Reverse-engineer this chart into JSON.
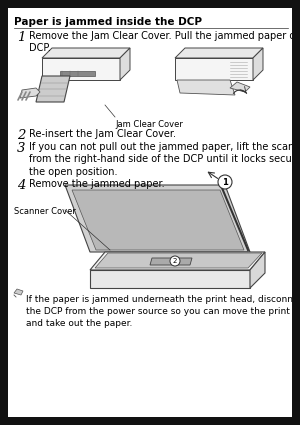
{
  "bg_color": "#ffffff",
  "page_bg": "#f0f0f0",
  "border_color": "#000000",
  "title": "Paper is jammed inside the DCP",
  "title_fontsize": 7.5,
  "step1_text": "Remove the Jam Clear Cover. Pull the jammed paper out of the\nDCP.",
  "step2_text": "Re-insert the Jam Clear Cover.",
  "step3_text": "If you can not pull out the jammed paper, lift the scanner cover\nfrom the right-hand side of the DCP until it locks securely into\nthe open position.",
  "step4_text": "Remove the jammed paper.",
  "note_text": "If the paper is jammed underneath the print head, disconnect\nthe DCP from the power source so you can move the print head\nand take out the paper.",
  "jam_clear_label": "Jam Clear Cover",
  "scanner_label": "Scanner Cover",
  "text_color": "#000000",
  "note_fontsize": 6.5,
  "step_fontsize": 7.0,
  "num_fontsize": 9.5,
  "label_fontsize": 6.0,
  "fig_width": 3.0,
  "fig_height": 4.25,
  "dpi": 100
}
